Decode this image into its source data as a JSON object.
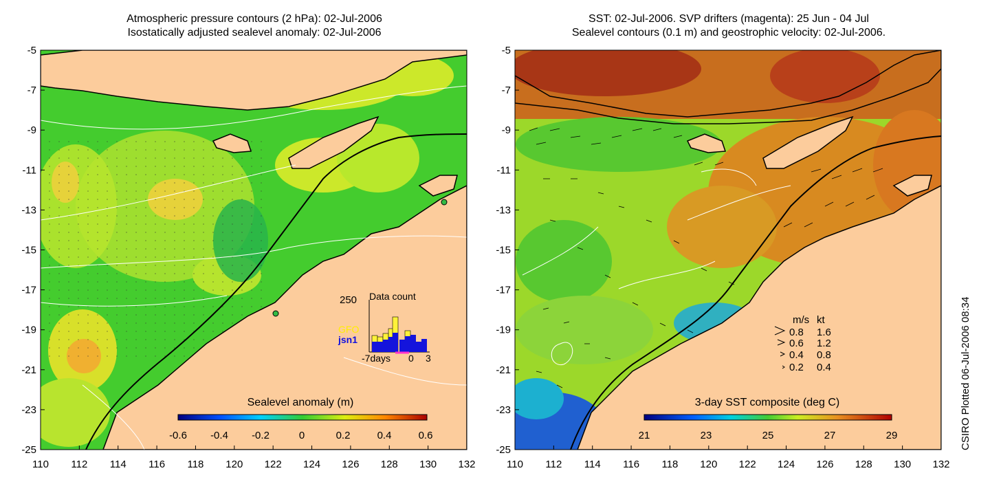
{
  "left_panel": {
    "title_line1": "Atmospheric pressure contours (2 hPa): 02-Jul-2006",
    "title_line2": "Isostatically adjusted sealevel anomaly: 02-Jul-2006",
    "colorbar_label": "Sealevel anomaly (m)",
    "colorbar_ticks": [
      "-0.6",
      "-0.4",
      "-0.2",
      "0",
      "0.2",
      "0.4",
      "0.6"
    ],
    "inset": {
      "y_label": "250",
      "title": "Data count",
      "legend": [
        "GFO",
        "jsn1"
      ],
      "x_ticks": [
        "-7days",
        "0",
        "3"
      ]
    }
  },
  "right_panel": {
    "title_line1": "SST: 02-Jul-2006. SVP drifters (magenta): 25 Jun - 04 Jul",
    "title_line2": "Sealevel contours (0.1 m) and geostrophic velocity: 02-Jul-2006.",
    "colorbar_label": "3-day SST composite (deg C)",
    "colorbar_ticks": [
      "21",
      "23",
      "25",
      "27",
      "29"
    ],
    "velocity_legend": {
      "header": [
        "m/s",
        "kt"
      ],
      "rows": [
        [
          "0.8",
          "1.6"
        ],
        [
          "0.6",
          "1.2"
        ],
        [
          "0.4",
          "0.8"
        ],
        [
          "0.2",
          "0.4"
        ]
      ]
    }
  },
  "axes": {
    "y_ticks": [
      "-5",
      "-7",
      "-9",
      "-11",
      "-13",
      "-15",
      "-17",
      "-19",
      "-21",
      "-23",
      "-25"
    ],
    "x_ticks": [
      "110",
      "112",
      "114",
      "116",
      "118",
      "120",
      "122",
      "124",
      "126",
      "128",
      "130",
      "132"
    ]
  },
  "credit": "CSIRO Plotted 06-Jul-2006 08:34",
  "colors": {
    "land": "#fccc9c",
    "ocean_green": "#33cc33",
    "ocean_yellow": "#ccee22",
    "sst_orange": "#e08a1e",
    "sst_red": "#b83c14",
    "sst_blue": "#1e6fe0"
  }
}
